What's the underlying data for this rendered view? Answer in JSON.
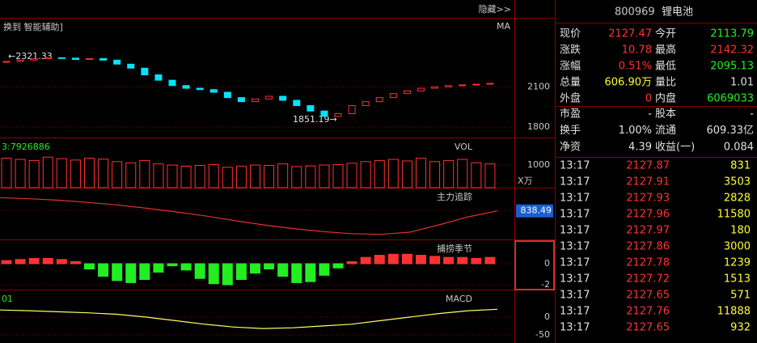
{
  "toolbar": {
    "left": "换到 智能辅助]",
    "right": "隐藏>>"
  },
  "chart_data": [
    {
      "type": "candlestick",
      "title": "MA",
      "close": [
        2290,
        2300,
        2310,
        2318,
        2315,
        2305,
        2312,
        2300,
        2270,
        2240,
        2190,
        2150,
        2110,
        2090,
        2080,
        2060,
        2020,
        1990,
        2010,
        2030,
        2000,
        1960,
        1920,
        1880,
        1900,
        1960,
        1990,
        2020,
        2050,
        2070,
        2090,
        2100,
        2110,
        2115,
        2120,
        2127
      ],
      "up_color": "#ff3232",
      "down_color": "#00e5ff",
      "ylim": [
        1722,
        2610
      ],
      "yticks": [
        2100,
        1800
      ],
      "annotations": [
        "←2321.33",
        "1851.19→"
      ]
    },
    {
      "type": "bar",
      "title": "VOL",
      "subtitle": "3:7926886",
      "values": [
        1300,
        1250,
        1200,
        1350,
        1280,
        1220,
        1300,
        1260,
        1150,
        1100,
        1200,
        1050,
        1000,
        950,
        980,
        1020,
        900,
        940,
        1000,
        980,
        1050,
        930,
        960,
        1000,
        1020,
        1080,
        1150,
        1200,
        1250,
        1180,
        1300,
        1150,
        1200,
        1250,
        1100,
        1050
      ],
      "color": "#ff3232",
      "ylim": [
        0,
        2143
      ],
      "yticks": [
        1000
      ],
      "unit": "X万"
    },
    {
      "type": "line",
      "title": "主力追踪",
      "values": [
        875,
        872,
        868,
        862,
        855,
        846,
        836,
        825,
        812,
        800,
        790,
        782,
        776,
        774,
        780,
        800,
        822,
        838.49
      ],
      "color": "#e03030",
      "ylim": [
        760,
        898
      ],
      "yticks": [
        840
      ],
      "last_label": "838.49"
    },
    {
      "type": "bar",
      "title": "捕捞季节",
      "values": [
        0.3,
        0.4,
        0.5,
        0.5,
        0.4,
        0.2,
        -0.5,
        -1.2,
        -1.6,
        -1.8,
        -1.5,
        -0.8,
        -0.2,
        -0.6,
        -1.4,
        -1.9,
        -2,
        -1.5,
        -0.9,
        -0.5,
        -1.2,
        -1.8,
        -1.7,
        -1.1,
        -0.4,
        0.2,
        0.6,
        0.8,
        0.9,
        0.9,
        0.8,
        0.7,
        0.6,
        0.6,
        0.5,
        0.6
      ],
      "up_color": "#ff3232",
      "down_color": "#22ee22",
      "ylim": [
        -2.46,
        2.15
      ],
      "yticks": [
        0,
        -2
      ]
    },
    {
      "type": "line",
      "title": "MACD",
      "subtitle": "01",
      "values": [
        20,
        18,
        15,
        12,
        8,
        0,
        -10,
        -20,
        -28,
        -32,
        -30,
        -25,
        -20,
        -10,
        0,
        10,
        18,
        22
      ],
      "color": "#ffff66",
      "ylim": [
        -72.7,
        72.7
      ],
      "yticks": [
        0,
        -50
      ]
    }
  ],
  "quote": {
    "code": "800969",
    "name": "锂电池",
    "rows": [
      [
        {
          "label": "现价",
          "value": 2127.47,
          "color": "#ff3232"
        },
        {
          "label": "今开",
          "value": 2113.79,
          "color": "#22ee22"
        }
      ],
      [
        {
          "label": "涨跌",
          "value": 10.78,
          "color": "#ff3232"
        },
        {
          "label": "最高",
          "value": 2142.32,
          "color": "#ff3232"
        }
      ],
      [
        {
          "label": "涨幅",
          "value": "0.51%",
          "color": "#ff3232"
        },
        {
          "label": "最低",
          "value": 2095.13,
          "color": "#22ee22"
        }
      ],
      [
        {
          "label": "总量",
          "value": "606.90万",
          "color": "#ffff33"
        },
        {
          "label": "量比",
          "value": 1.01,
          "color": "#e0e0e0"
        }
      ],
      [
        {
          "label": "外盘",
          "value": 0,
          "color": "#ff3232"
        },
        {
          "label": "内盘",
          "value": 6069033,
          "color": "#22ee22"
        }
      ],
      [
        {
          "label": "市盈",
          "value": "-",
          "color": "#e0e0e0"
        },
        {
          "label": "股本",
          "value": "-",
          "color": "#e0e0e0"
        }
      ],
      [
        {
          "label": "换手",
          "value": "1.00%",
          "color": "#e0e0e0"
        },
        {
          "label": "流通",
          "value": "609.33亿",
          "color": "#e0e0e0"
        }
      ],
      [
        {
          "label": "净资",
          "value": 4.39,
          "color": "#e0e0e0"
        },
        {
          "label": "收益(一)",
          "value": 0.084,
          "color": "#e0e0e0"
        }
      ]
    ]
  },
  "trades": [
    [
      "13:17",
      2127.87,
      831
    ],
    [
      "13:17",
      2127.91,
      3503
    ],
    [
      "13:17",
      2127.93,
      2828
    ],
    [
      "13:17",
      2127.96,
      11580
    ],
    [
      "13:17",
      2127.97,
      180
    ],
    [
      "13:17",
      2127.86,
      3000
    ],
    [
      "13:17",
      2127.78,
      1239
    ],
    [
      "13:17",
      2127.72,
      1513
    ],
    [
      "13:17",
      2127.65,
      571
    ],
    [
      "13:17",
      2127.76,
      11888
    ],
    [
      "13:17",
      2127.65,
      932
    ]
  ]
}
